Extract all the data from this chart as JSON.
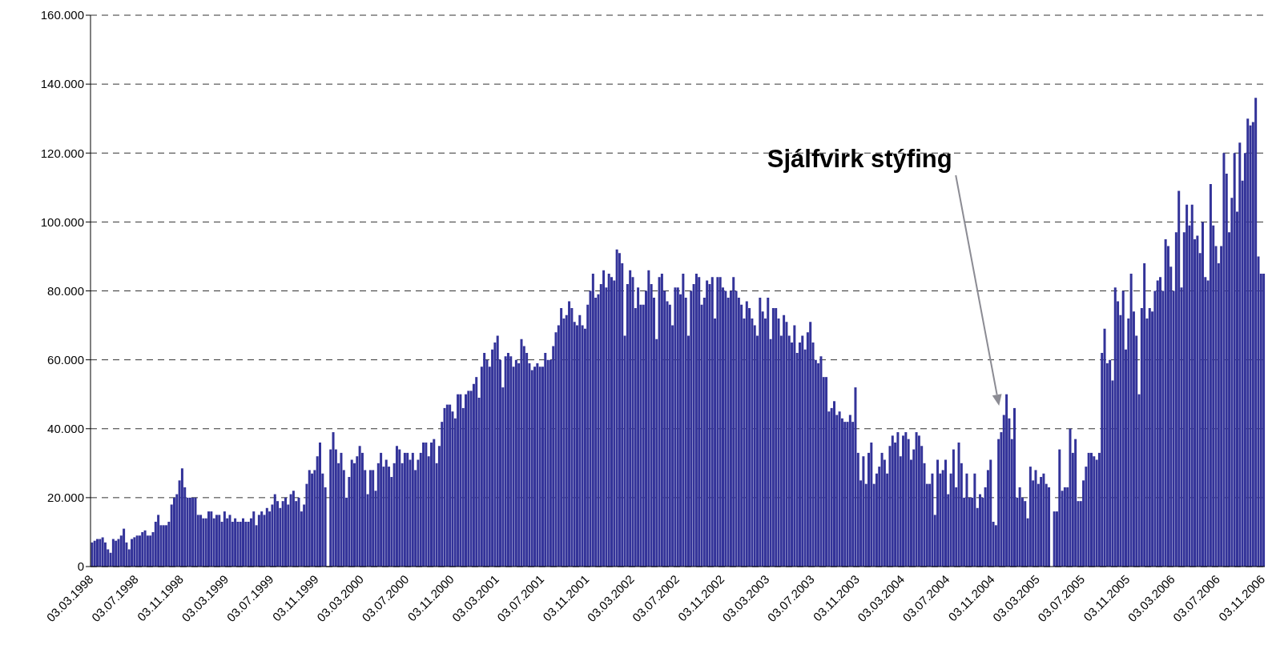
{
  "chart_data": {
    "type": "bar",
    "categories": [
      "03.03.1998",
      null,
      null,
      null,
      null,
      null,
      null,
      null,
      null,
      null,
      null,
      null,
      null,
      null,
      null,
      null,
      null,
      "03.07.1998",
      null,
      null,
      null,
      null,
      null,
      null,
      null,
      null,
      null,
      null,
      null,
      null,
      null,
      null,
      null,
      null,
      "03.11.1998",
      null,
      null,
      null,
      null,
      null,
      null,
      null,
      null,
      null,
      null,
      null,
      null,
      null,
      null,
      null,
      null,
      "03.03.1999",
      null,
      null,
      null,
      null,
      null,
      null,
      null,
      null,
      null,
      null,
      null,
      null,
      null,
      null,
      null,
      null,
      "03.07.1999",
      null,
      null,
      null,
      null,
      null,
      null,
      null,
      null,
      null,
      null,
      null,
      null,
      null,
      null,
      null,
      null,
      "03.11.1999",
      null,
      null,
      null,
      null,
      null,
      null,
      null,
      null,
      null,
      null,
      null,
      null,
      null,
      null,
      null,
      null,
      "03.03.2000",
      null,
      null,
      null,
      null,
      null,
      null,
      null,
      null,
      null,
      null,
      null,
      null,
      null,
      null,
      null,
      null,
      "03.07.2000",
      null,
      null,
      null,
      null,
      null,
      null,
      null,
      null,
      null,
      null,
      null,
      null,
      null,
      null,
      null,
      null,
      "03.11.2000",
      null,
      null,
      null,
      null,
      null,
      null,
      null,
      null,
      null,
      null,
      null,
      null,
      null,
      null,
      null,
      null,
      "03.03.2001",
      null,
      null,
      null,
      null,
      null,
      null,
      null,
      null,
      null,
      null,
      null,
      null,
      null,
      null,
      null,
      null,
      "03.07.2001",
      null,
      null,
      null,
      null,
      null,
      null,
      null,
      null,
      null,
      null,
      null,
      null,
      null,
      null,
      null,
      null,
      "03.11.2001",
      null,
      null,
      null,
      null,
      null,
      null,
      null,
      null,
      null,
      null,
      null,
      null,
      null,
      null,
      null,
      null,
      "03.03.2002",
      null,
      null,
      null,
      null,
      null,
      null,
      null,
      null,
      null,
      null,
      null,
      null,
      null,
      null,
      null,
      null,
      "03.07.2002",
      null,
      null,
      null,
      null,
      null,
      null,
      null,
      null,
      null,
      null,
      null,
      null,
      null,
      null,
      null,
      null,
      "03.11.2002",
      null,
      null,
      null,
      null,
      null,
      null,
      null,
      null,
      null,
      null,
      null,
      null,
      null,
      null,
      null,
      null,
      "03.03.2003",
      null,
      null,
      null,
      null,
      null,
      null,
      null,
      null,
      null,
      null,
      null,
      null,
      null,
      null,
      null,
      null,
      "03.07.2003",
      null,
      null,
      null,
      null,
      null,
      null,
      null,
      null,
      null,
      null,
      null,
      null,
      null,
      null,
      null,
      null,
      "03.11.2003",
      null,
      null,
      null,
      null,
      null,
      null,
      null,
      null,
      null,
      null,
      null,
      null,
      null,
      null,
      null,
      null,
      "03.03.2004",
      null,
      null,
      null,
      null,
      null,
      null,
      null,
      null,
      null,
      null,
      null,
      null,
      null,
      null,
      null,
      null,
      "03.07.2004",
      null,
      null,
      null,
      null,
      null,
      null,
      null,
      null,
      null,
      null,
      null,
      null,
      null,
      null,
      null,
      null,
      "03.11.2004",
      null,
      null,
      null,
      null,
      null,
      null,
      null,
      null,
      null,
      null,
      null,
      null,
      null,
      null,
      null,
      null,
      "03.03.2005",
      null,
      null,
      null,
      null,
      null,
      null,
      null,
      null,
      null,
      null,
      null,
      null,
      null,
      null,
      null,
      null,
      "03.07.2005",
      null,
      null,
      null,
      null,
      null,
      null,
      null,
      null,
      null,
      null,
      null,
      null,
      null,
      null,
      null,
      null,
      "03.11.2005",
      null,
      null,
      null,
      null,
      null,
      null,
      null,
      null,
      null,
      null,
      null,
      null,
      null,
      null,
      null,
      null,
      "03.03.2006",
      null,
      null,
      null,
      null,
      null,
      null,
      null,
      null,
      null,
      null,
      null,
      null,
      null,
      null,
      null,
      null,
      "03.07.2006",
      null,
      null,
      null,
      null,
      null,
      null,
      null,
      null,
      null,
      null,
      null,
      null,
      null,
      null,
      null,
      null,
      "03.11.2006"
    ],
    "values": [
      7000,
      7500,
      8000,
      8000,
      8500,
      7000,
      5000,
      4000,
      8000,
      7500,
      8000,
      9000,
      11000,
      7000,
      5000,
      8000,
      8500,
      9000,
      9000,
      10000,
      10500,
      9000,
      9000,
      10000,
      13000,
      15000,
      12000,
      12000,
      12000,
      13000,
      18000,
      20000,
      21000,
      25000,
      28500,
      23000,
      20000,
      20000,
      20000,
      20000,
      15000,
      15000,
      14000,
      14000,
      16000,
      16000,
      14000,
      15000,
      15000,
      13000,
      16000,
      14000,
      15000,
      13000,
      14000,
      13000,
      13000,
      14000,
      13000,
      13000,
      14000,
      16000,
      12000,
      15000,
      16000,
      15000,
      17000,
      16000,
      18000,
      21000,
      19000,
      17000,
      19000,
      20000,
      18000,
      21000,
      22000,
      19000,
      20000,
      16000,
      18000,
      24000,
      28000,
      27000,
      28000,
      32000,
      36000,
      27000,
      23000,
      null,
      34000,
      39000,
      34000,
      30000,
      33000,
      28000,
      20000,
      26000,
      31000,
      30000,
      32000,
      35000,
      33000,
      28000,
      21000,
      28000,
      28000,
      22000,
      30000,
      33000,
      29000,
      31000,
      29000,
      26000,
      30000,
      35000,
      34000,
      30000,
      33000,
      33000,
      31000,
      33000,
      28000,
      31000,
      33000,
      36000,
      36000,
      32000,
      36000,
      37000,
      30000,
      35000,
      42000,
      46000,
      47000,
      47000,
      45000,
      43000,
      50000,
      50000,
      46000,
      50000,
      51000,
      51000,
      53000,
      55000,
      49000,
      58000,
      62000,
      60000,
      58000,
      63000,
      65000,
      67000,
      60000,
      52000,
      61000,
      62000,
      61000,
      58000,
      60000,
      59000,
      66000,
      64000,
      62000,
      59000,
      57000,
      58000,
      59000,
      58000,
      58000,
      62000,
      60000,
      60000,
      64000,
      68000,
      70000,
      75000,
      72000,
      73000,
      77000,
      75000,
      71000,
      70000,
      73000,
      70000,
      69000,
      76000,
      80000,
      85000,
      78000,
      79000,
      82000,
      86000,
      81000,
      85000,
      84000,
      83000,
      92000,
      91000,
      88000,
      67000,
      82000,
      86000,
      84000,
      75000,
      81000,
      76000,
      76000,
      80000,
      86000,
      82000,
      78000,
      66000,
      84000,
      85000,
      80000,
      77000,
      76000,
      70000,
      81000,
      81000,
      79000,
      85000,
      78000,
      67000,
      80000,
      82000,
      85000,
      84000,
      76000,
      78000,
      83000,
      82000,
      84000,
      72000,
      84000,
      84000,
      81000,
      80000,
      78000,
      80000,
      84000,
      80000,
      78000,
      76000,
      72000,
      77000,
      75000,
      72000,
      70000,
      67000,
      78000,
      74000,
      72000,
      78000,
      66000,
      75000,
      75000,
      72000,
      67000,
      73000,
      71000,
      67000,
      65000,
      70000,
      62000,
      65000,
      67000,
      63000,
      68000,
      71000,
      65000,
      60000,
      59000,
      61000,
      55000,
      55000,
      45000,
      46000,
      48000,
      44000,
      45000,
      43000,
      42000,
      42000,
      44000,
      42000,
      52000,
      33000,
      25000,
      32000,
      24000,
      33000,
      36000,
      24000,
      27000,
      29000,
      33000,
      31000,
      27000,
      35000,
      38000,
      36000,
      39000,
      32000,
      38000,
      39000,
      37000,
      31000,
      34000,
      39000,
      38000,
      35000,
      30000,
      24000,
      24000,
      27000,
      15000,
      31000,
      27000,
      28000,
      31000,
      21000,
      27000,
      34000,
      23000,
      36000,
      30000,
      20000,
      27000,
      20000,
      20000,
      27000,
      17000,
      21000,
      20000,
      23000,
      28000,
      31000,
      13000,
      12000,
      37000,
      39000,
      44000,
      50000,
      43000,
      37000,
      46000,
      20000,
      23000,
      20000,
      19000,
      14000,
      29000,
      25000,
      28000,
      24000,
      26000,
      27000,
      24000,
      23000,
      null,
      16000,
      16000,
      34000,
      22000,
      23000,
      23000,
      40000,
      33000,
      37000,
      19000,
      19000,
      25000,
      29000,
      33000,
      33000,
      32000,
      31000,
      33000,
      62000,
      69000,
      59000,
      60000,
      54000,
      81000,
      77000,
      73000,
      80000,
      63000,
      72000,
      85000,
      74000,
      67000,
      50000,
      75000,
      88000,
      72000,
      75000,
      74000,
      80000,
      83000,
      84000,
      80000,
      95000,
      93000,
      87000,
      80000,
      97000,
      109000,
      81000,
      97000,
      105000,
      99000,
      105000,
      95000,
      96000,
      91000,
      100000,
      84000,
      83000,
      111000,
      99000,
      93000,
      88000,
      93000,
      120000,
      114000,
      97000,
      107000,
      120000,
      103000,
      123000,
      112000,
      120000,
      130000,
      128000,
      129000,
      136000,
      90000,
      85000,
      85000
    ],
    "color": "#333399",
    "ylim": [
      0,
      160000
    ],
    "yticks": [
      {
        "value": 0,
        "label": "0"
      },
      {
        "value": 20000,
        "label": "20.000"
      },
      {
        "value": 40000,
        "label": "40.000"
      },
      {
        "value": 60000,
        "label": "60.000"
      },
      {
        "value": 80000,
        "label": "80.000"
      },
      {
        "value": 100000,
        "label": "100.000"
      },
      {
        "value": 120000,
        "label": "120.000"
      },
      {
        "value": 140000,
        "label": "140.000"
      },
      {
        "value": 160000,
        "label": "160.000"
      }
    ],
    "grid": "y",
    "annotations": [
      "Sjálfvirk stýfing"
    ]
  }
}
